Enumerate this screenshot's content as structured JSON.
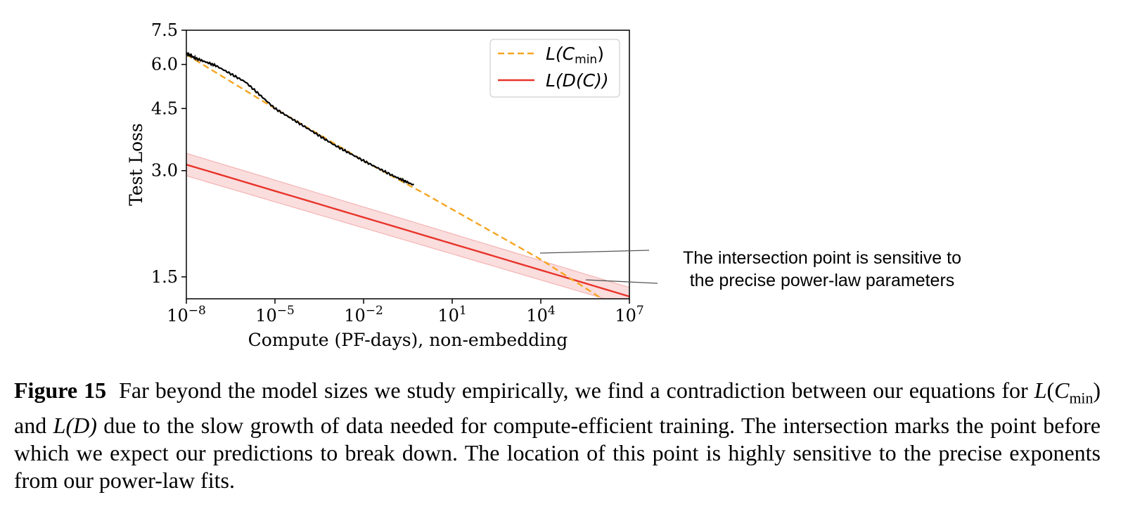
{
  "figure": {
    "label": "Figure 15",
    "caption": {
      "p1": "Far beyond the model sizes we study empirically, we find a contradiction between our equations for ",
      "m1": "L",
      "m1_open": "(",
      "m1_var": "C",
      "m1_sub": "min",
      "m1_close": ")",
      "p2": " and ",
      "m2": "L(D)",
      "p3": " due to the slow growth of data needed for compute-efficient training. The intersection marks the point before which we expect our predictions to break down. The location of this point is highly sensitive to the precise exponents from our power-law fits."
    }
  },
  "annotation": {
    "line1": "The intersection point is sensitive to",
    "line2": "the precise power-law parameters"
  },
  "chart_data": {
    "type": "line",
    "xlabel": "Compute (PF-days), non-embedding",
    "ylabel": "Test Loss",
    "xscale": "log",
    "yscale": "log",
    "xlim": [
      1e-08,
      10000000.0
    ],
    "ylim": [
      1.3,
      7.5
    ],
    "x_ticks": [
      {
        "value": 1e-08,
        "base": "10",
        "exp": "−8"
      },
      {
        "value": 1e-05,
        "base": "10",
        "exp": "−5"
      },
      {
        "value": 0.01,
        "base": "10",
        "exp": "−2"
      },
      {
        "value": 10.0,
        "base": "10",
        "exp": "1"
      },
      {
        "value": 10000.0,
        "base": "10",
        "exp": "4"
      },
      {
        "value": 10000000.0,
        "base": "10",
        "exp": "7"
      }
    ],
    "y_ticks": [
      {
        "value": 1.5,
        "label": "1.5"
      },
      {
        "value": 3.0,
        "label": "3.0"
      },
      {
        "value": 4.5,
        "label": "4.5"
      },
      {
        "value": 6.0,
        "label": "6.0"
      },
      {
        "value": 7.5,
        "label": "7.5"
      }
    ],
    "legend_position": "top-right",
    "series": [
      {
        "name": "L(C_min)",
        "legend_main": "L(C",
        "legend_sub": "min",
        "legend_close": ")",
        "style": "dashed",
        "color": "#f5a623",
        "x": [
          1e-08,
          1e-05,
          0.01,
          1,
          10000.0,
          10000000.0
        ],
        "y": [
          6.4,
          4.5,
          3.2,
          2.6,
          1.68,
          1.16
        ]
      },
      {
        "name": "L(D(C))",
        "legend_text": "L(D(C))",
        "style": "solid",
        "color": "#e8342a",
        "band_color": "#f7c6c6",
        "x": [
          1e-08,
          10000000.0
        ],
        "y": [
          3.12,
          1.32
        ],
        "band_upper": [
          3.36,
          1.4
        ],
        "band_lower": [
          2.9,
          1.24
        ]
      },
      {
        "name": "",
        "style": "solid",
        "color": "#000000",
        "x": [
          1e-08,
          2e-08,
          1e-07,
          1e-06,
          1e-05,
          0.0001,
          0.001,
          0.01,
          0.1,
          0.5
        ],
        "y": [
          6.45,
          6.25,
          5.95,
          5.35,
          4.5,
          4.0,
          3.55,
          3.2,
          2.9,
          2.73
        ]
      }
    ]
  }
}
